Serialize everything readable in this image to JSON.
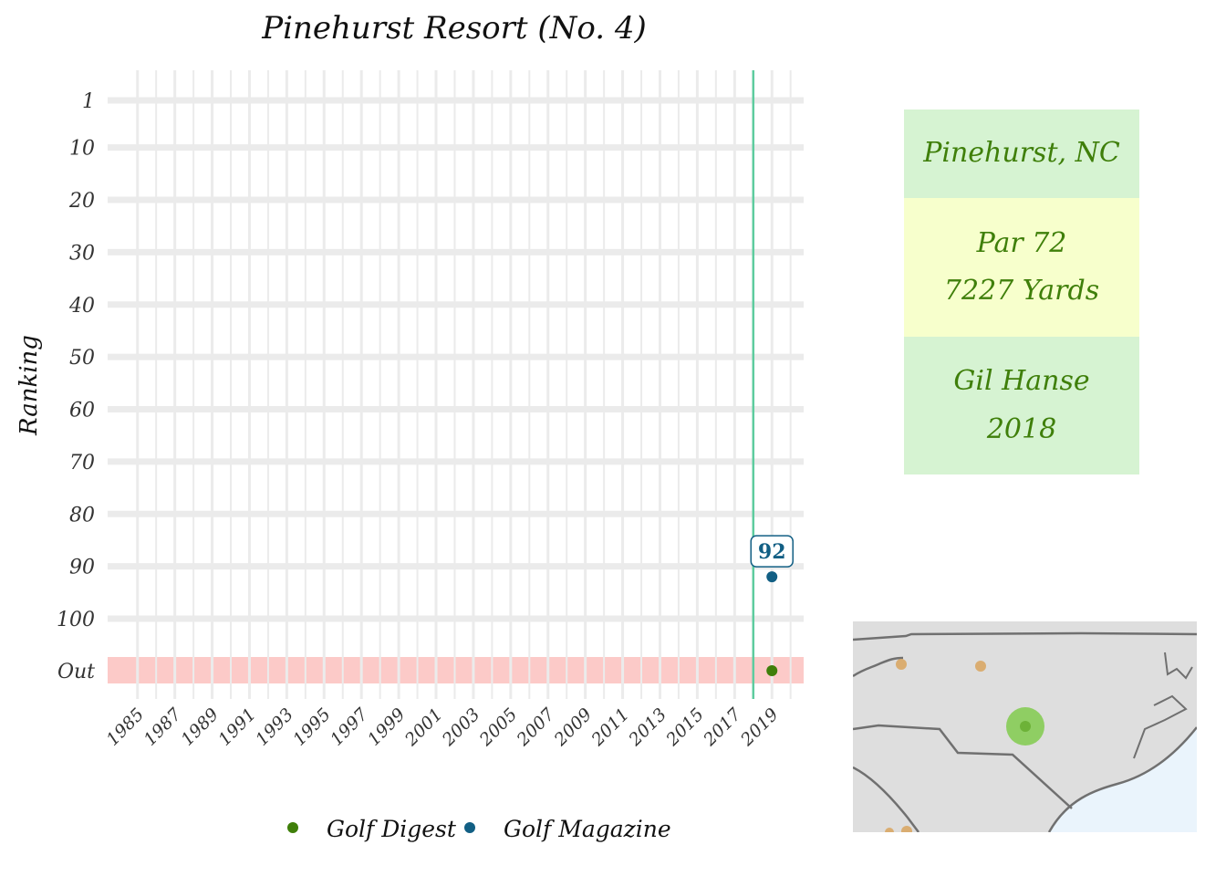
{
  "chart_data": {
    "type": "scatter",
    "title": "Pinehurst Resort (No. 4)",
    "ylabel": "Ranking",
    "xlabel": "",
    "x_ticks": [
      "1985",
      "1987",
      "1989",
      "1991",
      "1993",
      "1995",
      "1997",
      "1999",
      "2001",
      "2003",
      "2005",
      "2007",
      "2009",
      "2011",
      "2013",
      "2015",
      "2017",
      "2019"
    ],
    "x_range": [
      1983.4,
      2020.7
    ],
    "y_ticks": [
      "1",
      "10",
      "20",
      "30",
      "40",
      "50",
      "60",
      "70",
      "80",
      "90",
      "100",
      "Out"
    ],
    "y_range": [
      1,
      110
    ],
    "y_reversed": true,
    "out_band_label": "Out",
    "vertical_line_year": 2018,
    "series": [
      {
        "name": "Golf Digest",
        "color": "#3f7f0a",
        "points": [
          {
            "x": 2019,
            "y": "Out"
          }
        ]
      },
      {
        "name": "Golf Magazine",
        "color": "#125f84",
        "points": [
          {
            "x": 2019,
            "y": 92,
            "label": "92"
          }
        ]
      }
    ],
    "legend_position": "bottom",
    "grid": true
  },
  "colors": {
    "golf_digest": "#3f7f0a",
    "golf_magazine": "#125f84",
    "vline": "#5ecc9f",
    "out_band": "#fccac8",
    "grid": "#ebebeb",
    "info_text": "#3f7f0a",
    "map_land": "#dedede",
    "map_water": "#eaf4fc",
    "map_border": "#707070",
    "map_course": "#d9a55e",
    "map_highlight": "#7ac943"
  },
  "info": {
    "location": "Pinehurst, NC",
    "par": "Par 72",
    "yards": "7227 Yards",
    "architect": "Gil Hanse",
    "year": "2018"
  }
}
